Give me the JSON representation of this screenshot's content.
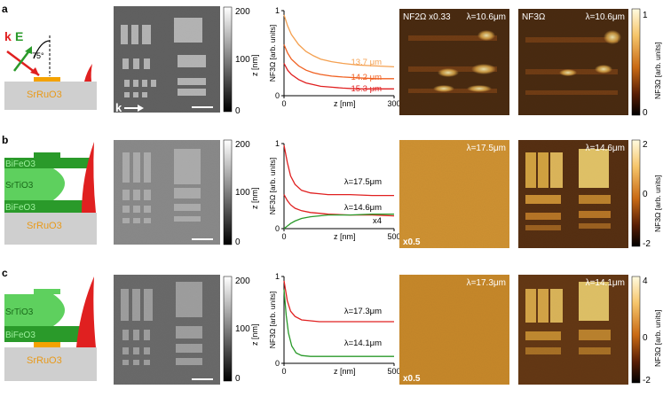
{
  "colors": {
    "substrate": "#cfcfcf",
    "sro_label": "#e89a1a",
    "electrode": "#f4a200",
    "bfo": "#2a9a2a",
    "sto": "#5ed05e",
    "field": "#e02020",
    "k_color": "#e02020",
    "e_color": "#2a9a2a",
    "curve_red": "#e02020",
    "curve_green": "#2a9a2a",
    "curve_orange1": "#f4a050",
    "curve_orange2": "#f06020"
  },
  "rows": [
    {
      "label": "a",
      "schematic": {
        "layers": [
          "SrRuO3"
        ],
        "angle": "75°",
        "k": "k",
        "E": "E"
      },
      "afm": {
        "k_label": "k",
        "colorbar_label": "z [nm]",
        "colorbar_ticks": [
          "200",
          "100",
          "0"
        ]
      },
      "plot": {
        "ylabel": "NF3Ω [arb. units]",
        "xlabel": "z [nm]",
        "yticks": [
          "1",
          "0"
        ],
        "xticks": [
          "0",
          "300"
        ],
        "series_labels": [
          "13.7 μm",
          "14.2 μm",
          "15.3 μm"
        ]
      },
      "nf1": {
        "label_left": "NF2Ω x0.33",
        "label_right": "λ=10.6μm"
      },
      "nf2": {
        "label_left": "NF3Ω",
        "label_right": "λ=10.6μm"
      },
      "cbar": {
        "label": "NF3Ω [arb. units]",
        "ticks": [
          "1",
          "0"
        ]
      }
    },
    {
      "label": "b",
      "schematic": {
        "layers": [
          "BiFeO3",
          "SrTiO3",
          "BiFeO3",
          "SrRuO3"
        ]
      },
      "afm": {
        "colorbar_label": "z [nm]",
        "colorbar_ticks": [
          "200",
          "100",
          "0"
        ]
      },
      "plot": {
        "ylabel": "NF3Ω [arb. units]",
        "xlabel": "z [nm]",
        "yticks": [
          "1",
          "0"
        ],
        "xticks": [
          "0",
          "500"
        ],
        "series_labels": [
          "λ=17.5μm",
          "λ=14.6μm",
          "x4"
        ]
      },
      "nf1": {
        "label_right": "λ=17.5μm",
        "scale": "x0.5"
      },
      "nf2": {
        "label_right": "λ=14.6μm"
      },
      "cbar": {
        "label": "NF3Ω [arb. units]",
        "ticks": [
          "2",
          "0",
          "-2"
        ]
      }
    },
    {
      "label": "c",
      "schematic": {
        "layers": [
          "SrTiO3",
          "BiFeO3",
          "SrRuO3"
        ]
      },
      "afm": {
        "colorbar_label": "z [nm]",
        "colorbar_ticks": [
          "200",
          "100",
          "0"
        ]
      },
      "plot": {
        "ylabel": "NF3Ω [arb. units]",
        "xlabel": "z [nm]",
        "yticks": [
          "1",
          "0"
        ],
        "xticks": [
          "0",
          "500"
        ],
        "series_labels": [
          "λ=17.3μm",
          "λ=14.1μm"
        ]
      },
      "nf1": {
        "label_right": "λ=17.3μm",
        "scale": "x0.5"
      },
      "nf2": {
        "label_right": "λ=14.1μm"
      },
      "cbar": {
        "label": "NF3Ω [arb. units]",
        "ticks": [
          "4",
          "0",
          "-2"
        ]
      }
    }
  ],
  "chart_data": [
    {
      "type": "line",
      "xlabel": "z [nm]",
      "ylabel": "NF3Ω [arb. units]",
      "xlim": [
        0,
        300
      ],
      "ylim": [
        0,
        1
      ],
      "series": [
        {
          "name": "13.7 μm",
          "x": [
            0,
            10,
            20,
            40,
            60,
            80,
            100,
            130,
            160,
            200,
            250,
            300
          ],
          "y": [
            0.95,
            0.82,
            0.72,
            0.6,
            0.52,
            0.47,
            0.43,
            0.4,
            0.38,
            0.36,
            0.35,
            0.34
          ]
        },
        {
          "name": "14.2 μm",
          "x": [
            0,
            10,
            20,
            40,
            60,
            80,
            100,
            130,
            160,
            200,
            250,
            300
          ],
          "y": [
            0.6,
            0.5,
            0.43,
            0.35,
            0.3,
            0.27,
            0.25,
            0.23,
            0.22,
            0.21,
            0.2,
            0.2
          ]
        },
        {
          "name": "15.3 μm",
          "x": [
            0,
            10,
            20,
            40,
            60,
            80,
            100,
            130,
            160,
            200,
            250,
            300
          ],
          "y": [
            0.38,
            0.3,
            0.25,
            0.19,
            0.15,
            0.13,
            0.11,
            0.1,
            0.09,
            0.08,
            0.08,
            0.08
          ]
        }
      ]
    },
    {
      "type": "line",
      "xlabel": "z [nm]",
      "ylabel": "NF3Ω [arb. units]",
      "xlim": [
        0,
        500
      ],
      "ylim": [
        0,
        1
      ],
      "series": [
        {
          "name": "λ=17.5μm",
          "x": [
            0,
            15,
            30,
            50,
            80,
            120,
            160,
            200,
            300,
            400,
            500
          ],
          "y": [
            0.98,
            0.78,
            0.62,
            0.52,
            0.45,
            0.42,
            0.41,
            0.4,
            0.4,
            0.39,
            0.39
          ]
        },
        {
          "name": "λ=14.6μm",
          "x": [
            0,
            15,
            30,
            50,
            80,
            120,
            160,
            200,
            300,
            400,
            500
          ],
          "y": [
            0.4,
            0.33,
            0.28,
            0.24,
            0.21,
            0.19,
            0.18,
            0.17,
            0.16,
            0.16,
            0.15
          ]
        },
        {
          "name": "x4",
          "x": [
            0,
            15,
            30,
            50,
            80,
            120,
            160,
            200,
            300,
            400,
            500
          ],
          "y": [
            0.0,
            0.03,
            0.06,
            0.09,
            0.12,
            0.14,
            0.15,
            0.16,
            0.16,
            0.17,
            0.17
          ]
        }
      ]
    },
    {
      "type": "line",
      "xlabel": "z [nm]",
      "ylabel": "NF3Ω [arb. units]",
      "xlim": [
        0,
        500
      ],
      "ylim": [
        0,
        1
      ],
      "series": [
        {
          "name": "λ=17.3μm",
          "x": [
            0,
            15,
            30,
            50,
            80,
            120,
            160,
            200,
            300,
            400,
            500
          ],
          "y": [
            0.95,
            0.72,
            0.6,
            0.54,
            0.5,
            0.49,
            0.48,
            0.48,
            0.48,
            0.48,
            0.48
          ]
        },
        {
          "name": "λ=14.1μm",
          "x": [
            0,
            10,
            20,
            35,
            55,
            80,
            120,
            160,
            200,
            300,
            400,
            500
          ],
          "y": [
            0.85,
            0.55,
            0.35,
            0.2,
            0.12,
            0.09,
            0.08,
            0.08,
            0.08,
            0.08,
            0.08,
            0.08
          ]
        }
      ]
    }
  ]
}
